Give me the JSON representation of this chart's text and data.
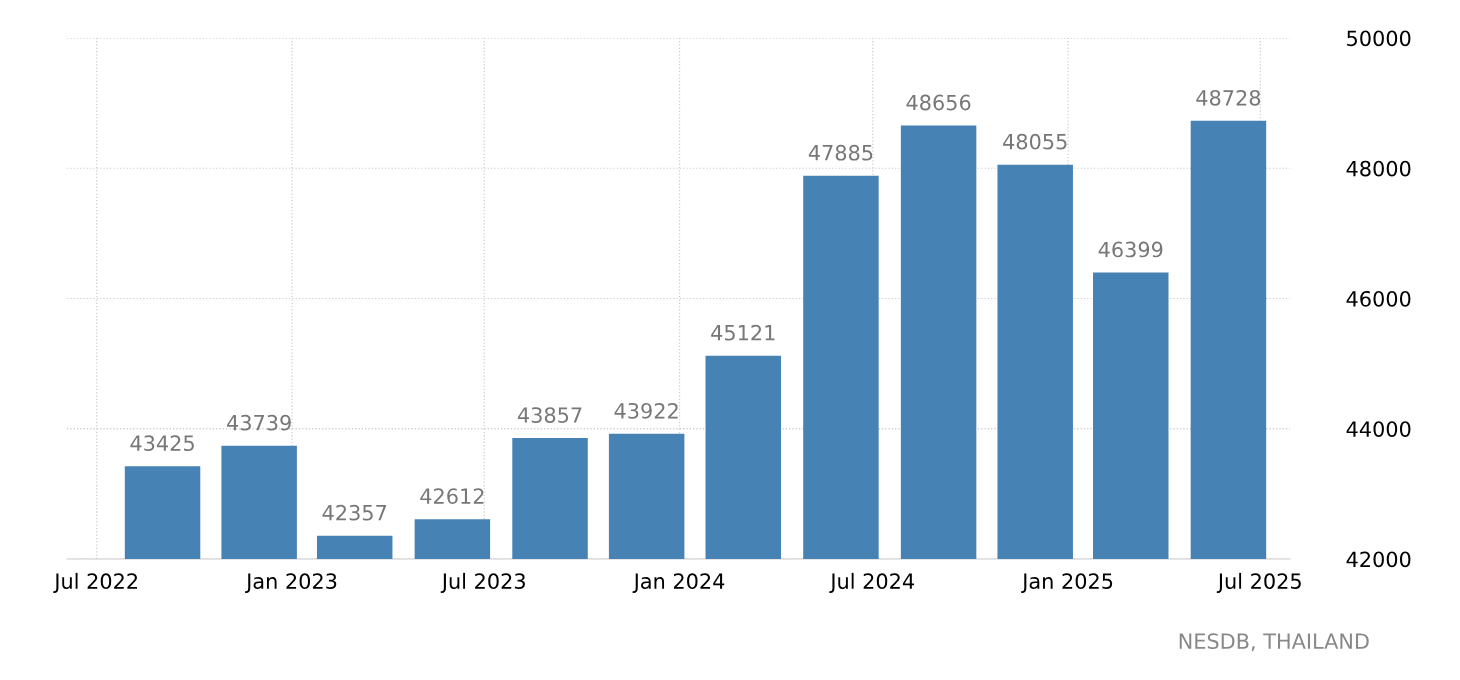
{
  "chart_data": {
    "type": "bar",
    "x": [
      "2022-09",
      "2022-12",
      "2023-03",
      "2023-06",
      "2023-09",
      "2023-12",
      "2024-03",
      "2024-06",
      "2024-09",
      "2024-12",
      "2025-03",
      "2025-06"
    ],
    "values": [
      43425,
      43739,
      42357,
      42612,
      43857,
      43922,
      45121,
      47885,
      48656,
      48055,
      46399,
      48728
    ],
    "color": "#4682b4",
    "data_labels": true,
    "xlim": [
      "2022-06-03",
      "2025-07-29"
    ],
    "xticks": [
      {
        "value": "2022-07-01",
        "label": "Jul 2022"
      },
      {
        "value": "2023-01-01",
        "label": "Jan 2023"
      },
      {
        "value": "2023-07-01",
        "label": "Jul 2023"
      },
      {
        "value": "2024-01-01",
        "label": "Jan 2024"
      },
      {
        "value": "2024-07-01",
        "label": "Jul 2024"
      },
      {
        "value": "2025-01-01",
        "label": "Jan 2025"
      },
      {
        "value": "2025-07-01",
        "label": "Jul 2025"
      }
    ],
    "ylim": [
      42000,
      50000
    ],
    "yticks": [
      42000,
      44000,
      46000,
      48000,
      50000
    ],
    "grid": true,
    "annotations": [
      "NESDB, THAILAND"
    ]
  }
}
